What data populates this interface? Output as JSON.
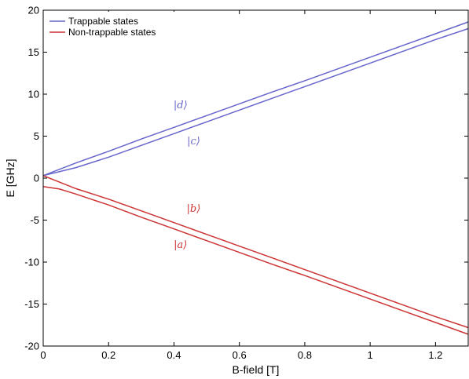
{
  "chart_data": {
    "type": "line",
    "title": "",
    "xlabel": "B-field [T]",
    "ylabel": "E [GHz]",
    "xlim": [
      0,
      1.3
    ],
    "ylim": [
      -20,
      20
    ],
    "xticks": [
      0,
      0.2,
      0.4,
      0.6,
      0.8,
      1,
      1.2
    ],
    "xtick_labels": [
      "0",
      "0.2",
      "0.4",
      "0.6",
      "0.8",
      "1",
      "1.2"
    ],
    "yticks": [
      -20,
      -15,
      -10,
      -5,
      0,
      5,
      10,
      15,
      20
    ],
    "ytick_labels": [
      "-20",
      "-15",
      "-10",
      "-5",
      "0",
      "5",
      "10",
      "15",
      "20"
    ],
    "grid": false,
    "legend_position": "top-left",
    "legend": [
      {
        "label": "Trappable states",
        "color": "#6666cc"
      },
      {
        "label": "Non-trappable states",
        "color": "#cc3333"
      }
    ],
    "series": [
      {
        "state": "d",
        "group": "trappable",
        "color": "#6666cc",
        "x": [
          0,
          0.1,
          0.2,
          0.3,
          0.4,
          0.5,
          0.6,
          0.7,
          0.8,
          0.9,
          1.0,
          1.1,
          1.2,
          1.3
        ],
        "y": [
          0.3,
          1.8,
          3.2,
          4.65,
          6.05,
          7.45,
          8.85,
          10.25,
          11.6,
          13.0,
          14.4,
          15.8,
          17.2,
          18.6
        ]
      },
      {
        "state": "c",
        "group": "trappable",
        "color": "#6666cc",
        "x": [
          0,
          0.1,
          0.2,
          0.3,
          0.4,
          0.5,
          0.6,
          0.7,
          0.8,
          0.9,
          1.0,
          1.1,
          1.2,
          1.3
        ],
        "y": [
          0.3,
          1.25,
          2.5,
          3.9,
          5.3,
          6.7,
          8.1,
          9.5,
          10.9,
          12.3,
          13.7,
          15.1,
          16.5,
          17.8
        ]
      },
      {
        "state": "b",
        "group": "non-trappable",
        "color": "#cc3333",
        "x": [
          0,
          0.1,
          0.2,
          0.3,
          0.4,
          0.5,
          0.6,
          0.7,
          0.8,
          0.9,
          1.0,
          1.1,
          1.2,
          1.3
        ],
        "y": [
          0.3,
          -1.25,
          -2.5,
          -3.9,
          -5.3,
          -6.7,
          -8.1,
          -9.5,
          -10.9,
          -12.3,
          -13.7,
          -15.1,
          -16.5,
          -17.8
        ]
      },
      {
        "state": "a",
        "group": "non-trappable",
        "color": "#cc3333",
        "x": [
          0,
          0.05,
          0.1,
          0.15,
          0.2,
          0.3,
          0.4,
          0.5,
          0.6,
          0.7,
          0.8,
          0.9,
          1.0,
          1.1,
          1.2,
          1.3
        ],
        "y": [
          -1.0,
          -1.3,
          -1.9,
          -2.55,
          -3.2,
          -4.65,
          -6.05,
          -7.45,
          -8.85,
          -10.25,
          -11.6,
          -13.0,
          -14.4,
          -15.8,
          -17.2,
          -18.6
        ]
      }
    ],
    "annotations": [
      {
        "text": "|d⟩",
        "x": 0.42,
        "y": 8.3,
        "color": "#6666cc"
      },
      {
        "text": "|c⟩",
        "x": 0.46,
        "y": 4.0,
        "color": "#6666cc"
      },
      {
        "text": "|b⟩",
        "x": 0.46,
        "y": -4.0,
        "color": "#cc3333"
      },
      {
        "text": "|a⟩",
        "x": 0.42,
        "y": -8.3,
        "color": "#cc3333"
      }
    ]
  }
}
